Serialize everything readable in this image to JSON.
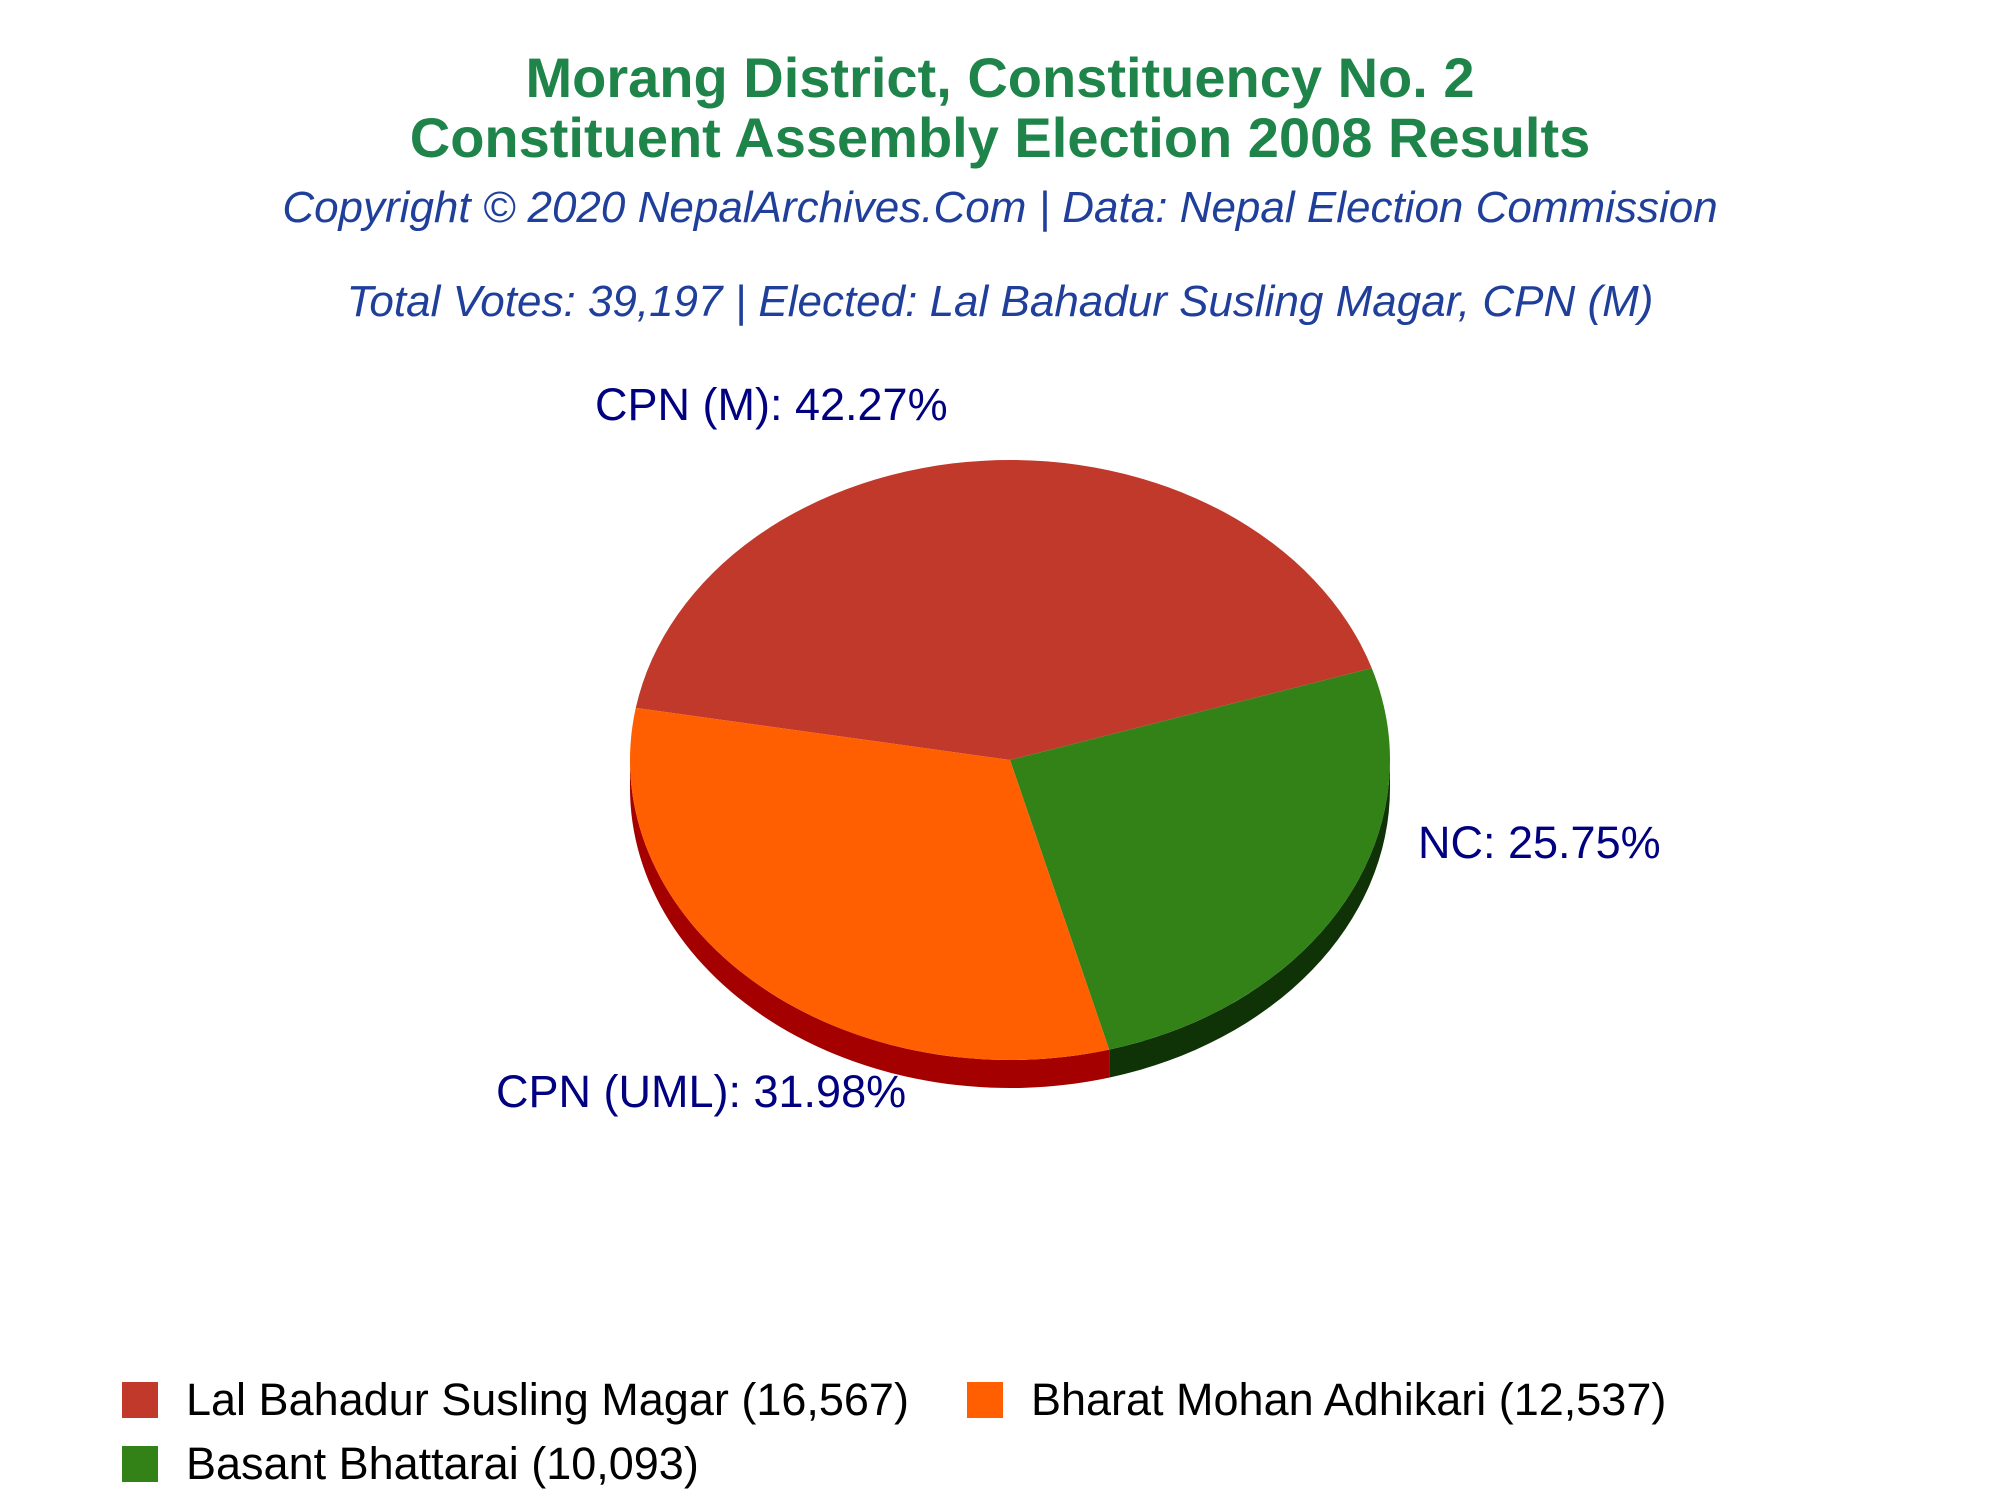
{
  "header": {
    "title_line1": "Morang District, Constituency No. 2",
    "title_line2": "Constituent Assembly Election 2008 Results",
    "copyright": "Copyright © 2020 NepalArchives.Com | Data: Nepal Election Commission",
    "summary": "Total Votes: 39,197 | Elected: Lal Bahadur Susling Magar, CPN (M)"
  },
  "colors": {
    "title": "#1e8449",
    "subtitle": "#1f3f9a",
    "label": "#000080"
  },
  "chart_data": {
    "type": "pie",
    "total_votes": 39197,
    "slices": [
      {
        "party": "CPN (M)",
        "percent": 42.27,
        "label": "CPN (M): 42.27%",
        "color": "#c0392b",
        "side_color": "#922b21"
      },
      {
        "party": "NC",
        "percent": 25.75,
        "label": "NC: 25.75%",
        "color": "#338218",
        "side_color": "#0f3306"
      },
      {
        "party": "CPN (UML)",
        "percent": 31.98,
        "label": "CPN (UML): 31.98%",
        "color": "#ff5f00",
        "side_color": "#a50000"
      }
    ],
    "legend": [
      {
        "candidate": "Lal Bahadur Susling Magar",
        "votes": 16567,
        "text": "Lal Bahadur Susling Magar (16,567)",
        "color": "#c0392b"
      },
      {
        "candidate": "Bharat Mohan Adhikari",
        "votes": 12537,
        "text": "Bharat Mohan Adhikari (12,537)",
        "color": "#ff5f00"
      },
      {
        "candidate": "Basant Bhattarai",
        "votes": 10093,
        "text": "Basant Bhattarai (10,093)",
        "color": "#338218"
      }
    ],
    "legend_placement": "bottom-left"
  }
}
